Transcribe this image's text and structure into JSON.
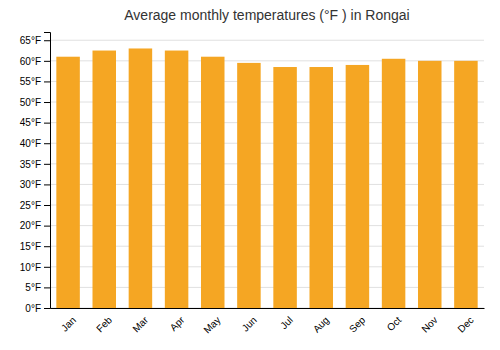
{
  "chart_data": {
    "type": "bar",
    "title": "Average monthly temperatures (°F ) in Rongai",
    "categories": [
      "Jan",
      "Feb",
      "Mar",
      "Apr",
      "May",
      "Jun",
      "Jul",
      "Aug",
      "Sep",
      "Oct",
      "Nov",
      "Dec"
    ],
    "values": [
      61.0,
      62.5,
      63.0,
      62.5,
      61.0,
      59.5,
      58.5,
      58.5,
      59.0,
      60.5,
      60.0,
      60.0
    ],
    "color": "#F5A623",
    "ylim": [
      0,
      67
    ],
    "yticks": [
      {
        "value": 0,
        "label": "0°F"
      },
      {
        "value": 5,
        "label": "5°F"
      },
      {
        "value": 10,
        "label": "10°F"
      },
      {
        "value": 15,
        "label": "15°F"
      },
      {
        "value": 20,
        "label": "20°F"
      },
      {
        "value": 25,
        "label": "25°F"
      },
      {
        "value": 30,
        "label": "30°F"
      },
      {
        "value": 35,
        "label": "35°F"
      },
      {
        "value": 40,
        "label": "40°F"
      },
      {
        "value": 45,
        "label": "45°F"
      },
      {
        "value": 50,
        "label": "50°F"
      },
      {
        "value": 55,
        "label": "55°F"
      },
      {
        "value": 60,
        "label": "60°F"
      },
      {
        "value": 65,
        "label": "65°F"
      }
    ],
    "grid": true
  }
}
